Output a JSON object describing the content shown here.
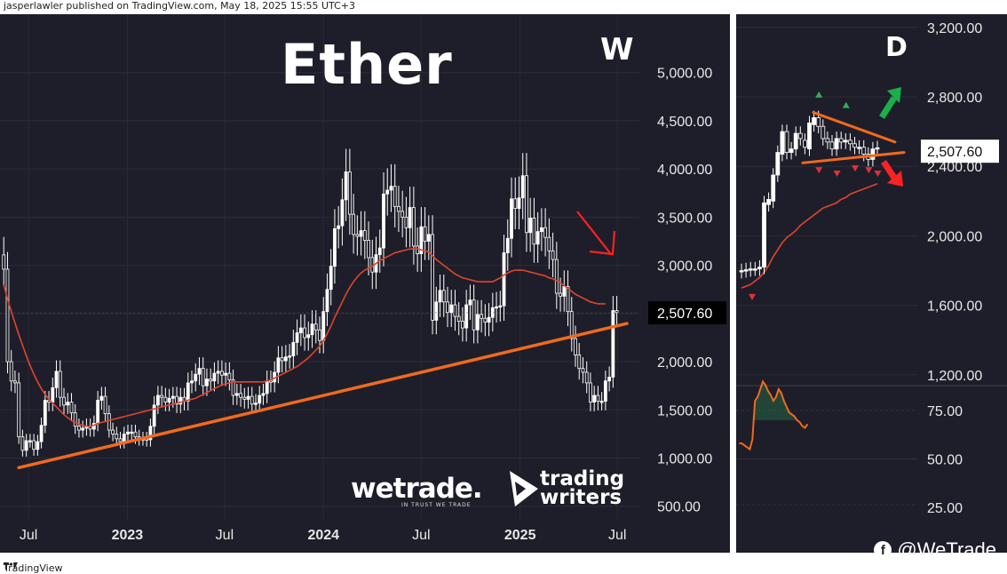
{
  "header": {
    "publisher_text": "jasperlawler published on TradingView.com, May 18, 2025 15:55 UTC+3"
  },
  "footer": {
    "brand": "TradingView"
  },
  "branding": {
    "wetrade_logo": "wetrade.",
    "wetrade_tagline": "IN TRUST WE TRADE",
    "tradingwriters_line1": "trading",
    "tradingwriters_line2": "writers",
    "social_handle": "@WeTrade",
    "social_icon": "facebook-icon"
  },
  "colors": {
    "background": "#1e1e2a",
    "candle": "#ffffff",
    "ma": "#e0452c",
    "trendline": "#f06a1e",
    "arrow_red": "#ff2222",
    "arrow_green": "#19b04b",
    "indicator_line": "#f06a1e"
  },
  "chart_data": [
    {
      "type": "line",
      "title": "Ether",
      "timeframe": "W",
      "x_ticks": [
        "Jul",
        "2023",
        "Jul",
        "2024",
        "Jul",
        "2025",
        "Jul"
      ],
      "y_ticks": [
        500,
        1000,
        1500,
        2000,
        2500,
        3000,
        3500,
        4000,
        4500,
        5000
      ],
      "y_tick_labels": [
        "500.00",
        "1,000.00",
        "1,500.00",
        "2,000.00",
        "2,500.00",
        "3,000.00",
        "3,500.00",
        "4,000.00",
        "4,500.00",
        "5,000.00"
      ],
      "ylim": [
        350,
        5200
      ],
      "last_price": 2507.6,
      "last_price_label": "2,507.60",
      "x_range": [
        "2022-05-09",
        "2025-08-11"
      ],
      "candles": {
        "note": "weekly closes, Ether/USD",
        "start_week": "2022-05-16",
        "close": [
          2960,
          2000,
          1800,
          1780,
          1220,
          1080,
          1180,
          1180,
          1090,
          1170,
          1340,
          1600,
          1580,
          1730,
          1900,
          1630,
          1550,
          1580,
          1470,
          1330,
          1290,
          1310,
          1330,
          1300,
          1360,
          1600,
          1640,
          1460,
          1290,
          1250,
          1200,
          1170,
          1250,
          1270,
          1270,
          1220,
          1200,
          1200,
          1190,
          1330,
          1550,
          1650,
          1630,
          1580,
          1620,
          1640,
          1560,
          1630,
          1590,
          1780,
          1800,
          1870,
          1930,
          1750,
          1820,
          1800,
          1880,
          1900,
          1860,
          1880,
          1810,
          1650,
          1670,
          1630,
          1610,
          1640,
          1560,
          1570,
          1650,
          1670,
          1800,
          1790,
          1890,
          2040,
          2010,
          2050,
          2060,
          2200,
          2300,
          2350,
          2250,
          2280,
          2390,
          2330,
          2220,
          2520,
          2750,
          2990,
          3380,
          3410,
          3680,
          3970,
          3530,
          3320,
          3300,
          3360,
          3260,
          3080,
          2930,
          3110,
          3180,
          3740,
          3780,
          3820,
          3610,
          3560,
          3500,
          3390,
          3600,
          3200,
          3120,
          3400,
          3250,
          3320,
          2430,
          2620,
          2740,
          2620,
          2510,
          2590,
          2470,
          2420,
          2350,
          2590,
          2640,
          2330,
          2490,
          2450,
          2410,
          2460,
          2560,
          2570,
          2580,
          3130,
          3280,
          3690,
          3590,
          3700,
          3930,
          3340,
          3490,
          3220,
          3350,
          3390,
          3290,
          3150,
          3060,
          2710,
          2680,
          2780,
          2520,
          2240,
          2070,
          1930,
          1890,
          1780,
          1580,
          1650,
          1590,
          1590,
          1800,
          1840,
          2530,
          2510
        ],
        "ma20": [
          2800,
          2650,
          2520,
          2400,
          2280,
          2170,
          2060,
          1960,
          1870,
          1790,
          1720,
          1660,
          1610,
          1570,
          1530,
          1490,
          1450,
          1420,
          1390,
          1370,
          1350,
          1340,
          1330,
          1330,
          1340,
          1360,
          1370,
          1380,
          1390,
          1400,
          1410,
          1420,
          1430,
          1440,
          1450,
          1460,
          1470,
          1480,
          1490,
          1500,
          1510,
          1520,
          1530,
          1540,
          1550,
          1560,
          1570,
          1580,
          1590,
          1600,
          1610,
          1620,
          1640,
          1660,
          1680,
          1700,
          1720,
          1740,
          1760,
          1770,
          1780,
          1790,
          1790,
          1790,
          1790,
          1790,
          1790,
          1790,
          1790,
          1790,
          1800,
          1810,
          1830,
          1850,
          1870,
          1890,
          1910,
          1930,
          1950,
          1980,
          2010,
          2040,
          2080,
          2120,
          2160,
          2220,
          2290,
          2370,
          2460,
          2540,
          2620,
          2700,
          2770,
          2830,
          2880,
          2920,
          2950,
          2970,
          2990,
          3020,
          3050,
          3070,
          3090,
          3110,
          3130,
          3140,
          3150,
          3160,
          3170,
          3170,
          3170,
          3160,
          3150,
          3140,
          3100,
          3060,
          3030,
          3000,
          2970,
          2940,
          2910,
          2890,
          2870,
          2860,
          2850,
          2840,
          2830,
          2830,
          2830,
          2830,
          2830,
          2850,
          2870,
          2900,
          2920,
          2940,
          2950,
          2950,
          2950,
          2940,
          2930,
          2920,
          2910,
          2900,
          2890,
          2870,
          2860,
          2840,
          2820,
          2790,
          2760,
          2730,
          2700,
          2680,
          2660,
          2640,
          2620,
          2610,
          2600,
          2600,
          2600
        ]
      },
      "trendline": {
        "from": [
          "2022-06-13",
          900
        ],
        "to": [
          "2025-06-16",
          2350
        ]
      },
      "annotation_arrow": {
        "direction": "down-right",
        "color": "red"
      }
    },
    {
      "type": "line",
      "timeframe": "D",
      "y_ticks": [
        1200,
        1600,
        2000,
        2400,
        2800,
        3200
      ],
      "y_tick_labels": [
        "1,200.00",
        "1,600.00",
        "2,000.00",
        "2,400.00",
        "2,800.00",
        "3,200.00"
      ],
      "ylim": [
        1000,
        3250
      ],
      "last_price": 2507.6,
      "last_price_label": "2,507.60",
      "candles": {
        "open": [
          1795,
          1800,
          1805,
          1810,
          1810,
          1820,
          2180,
          2200,
          2350,
          2470,
          2600,
          2480,
          2500,
          2590,
          2550,
          2500,
          2640,
          2680,
          2630,
          2560,
          2540,
          2500,
          2560,
          2540,
          2550,
          2530,
          2510,
          2510,
          2470,
          2440,
          2500
        ],
        "close": [
          1800,
          1805,
          1810,
          1810,
          1820,
          2190,
          2210,
          2350,
          2480,
          2600,
          2480,
          2500,
          2590,
          2560,
          2510,
          2650,
          2680,
          2630,
          2560,
          2540,
          2500,
          2560,
          2540,
          2550,
          2530,
          2510,
          2510,
          2470,
          2440,
          2500,
          2507
        ],
        "ma": [
          1700,
          1710,
          1720,
          1740,
          1760,
          1790,
          1830,
          1880,
          1920,
          1960,
          1990,
          2010,
          2030,
          2060,
          2080,
          2100,
          2120,
          2140,
          2160,
          2170,
          2180,
          2190,
          2210,
          2220,
          2240,
          2250,
          2260,
          2270,
          2280,
          2290,
          2300
        ]
      },
      "pattern_lines": {
        "upper": [
          [
            10,
            2710
          ],
          [
            28,
            2540
          ]
        ],
        "lower": [
          [
            10,
            2420
          ],
          [
            30,
            2480
          ]
        ]
      },
      "triangle_markers": {
        "up": [
          [
            12,
            2780
          ],
          [
            18,
            2720
          ]
        ],
        "down": [
          [
            0,
            1650
          ],
          [
            12,
            2380
          ],
          [
            16,
            2360
          ],
          [
            20,
            2390
          ],
          [
            23,
            2380
          ],
          [
            25,
            2360
          ]
        ]
      },
      "arrows": [
        {
          "direction": "up-right",
          "color": "green"
        },
        {
          "direction": "down-right",
          "color": "red"
        }
      ],
      "indicator": {
        "y_ticks": [
          25,
          50,
          75
        ],
        "y_tick_labels": [
          "25.00",
          "50.00",
          "75.00"
        ],
        "ylim": [
          22,
          100
        ],
        "levels": [
          30,
          70
        ],
        "values": [
          58,
          58,
          57,
          56,
          55,
          60,
          80,
          82,
          86,
          90,
          88,
          85,
          83,
          80,
          82,
          86,
          84,
          80,
          77,
          74,
          73,
          72,
          70,
          69,
          67,
          66,
          68
        ]
      }
    }
  ]
}
